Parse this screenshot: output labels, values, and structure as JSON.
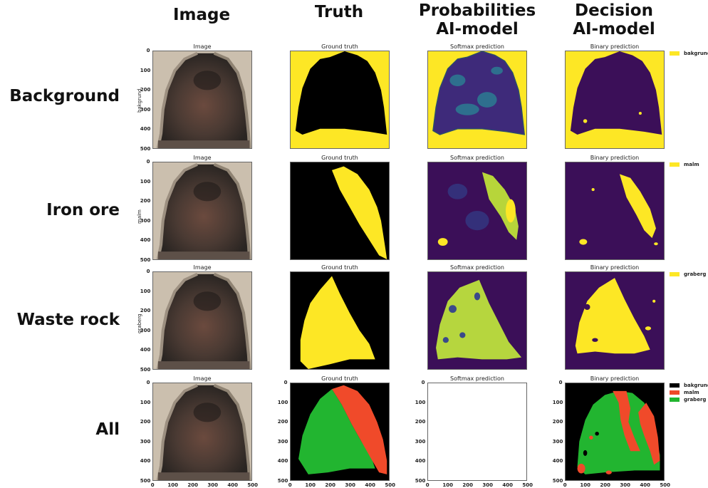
{
  "columns": [
    "Image",
    "Truth",
    "Probabilities\nAI-model",
    "Decision\nAI-model"
  ],
  "rows": [
    {
      "label": "Background",
      "ylabel": "bakgrund",
      "legend": [
        "bakgrund"
      ]
    },
    {
      "label": "Iron ore",
      "ylabel": "malm",
      "legend": [
        "malm"
      ]
    },
    {
      "label": "Waste rock",
      "ylabel": "graberg",
      "legend": [
        "graberg"
      ]
    },
    {
      "label": "All",
      "ylabel": "",
      "legend": [
        "bakgrund",
        "malm",
        "graberg"
      ]
    }
  ],
  "panel_titles": [
    "Image",
    "Ground truth",
    "Softmax prediction",
    "Binary prediction"
  ],
  "y_ticks": [
    "0",
    "100",
    "200",
    "300",
    "400",
    "500"
  ],
  "x_ticks": [
    "0",
    "100",
    "200",
    "300",
    "400",
    "500"
  ],
  "colors": {
    "yellow": "#fde725",
    "purple": "#3b0f58",
    "black": "#000000",
    "red": "#f04a2a",
    "green": "#22b530",
    "bakgrund": "#000000",
    "malm": "#f04a2a",
    "graberg": "#22b530"
  }
}
